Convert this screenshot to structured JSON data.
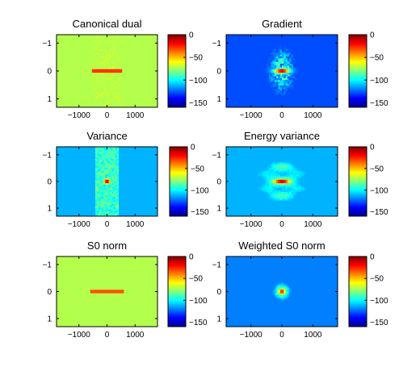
{
  "chart_data": [
    {
      "type": "heatmap",
      "title": "Canonical dual",
      "pattern": "band",
      "x_ticks": [
        "−1000",
        "0",
        "1000"
      ],
      "y_ticks": [
        "−1",
        "0",
        "1"
      ],
      "xlim": [
        -1800,
        1800
      ],
      "ylim": [
        1.3,
        -1.3
      ],
      "colorbar": {
        "ticks": [
          "0",
          "−50",
          "−100",
          "−150"
        ],
        "range": [
          -160,
          0
        ]
      }
    },
    {
      "type": "heatmap",
      "title": "Gradient",
      "pattern": "gradient",
      "x_ticks": [
        "−1000",
        "0",
        "1000"
      ],
      "y_ticks": [
        "−1",
        "0",
        "1"
      ],
      "xlim": [
        -1800,
        1800
      ],
      "ylim": [
        1.3,
        -1.3
      ],
      "colorbar": {
        "ticks": [
          "0",
          "−50",
          "−100",
          "−150"
        ],
        "range": [
          -160,
          0
        ]
      }
    },
    {
      "type": "heatmap",
      "title": "Variance",
      "pattern": "variance",
      "x_ticks": [
        "−1000",
        "0",
        "1000"
      ],
      "y_ticks": [
        "−1",
        "0",
        "1"
      ],
      "xlim": [
        -1800,
        1800
      ],
      "ylim": [
        1.3,
        -1.3
      ],
      "colorbar": {
        "ticks": [
          "0",
          "−50",
          "−100",
          "−150"
        ],
        "range": [
          -160,
          0
        ]
      }
    },
    {
      "type": "heatmap",
      "title": "Energy variance",
      "pattern": "energy",
      "x_ticks": [
        "−1000",
        "0",
        "1000"
      ],
      "y_ticks": [
        "−1",
        "0",
        "1"
      ],
      "xlim": [
        -1800,
        1800
      ],
      "ylim": [
        1.3,
        -1.3
      ],
      "colorbar": {
        "ticks": [
          "0",
          "−50",
          "−100",
          "−150"
        ],
        "range": [
          -160,
          0
        ]
      }
    },
    {
      "type": "heatmap",
      "title": "S0 norm",
      "pattern": "s0",
      "x_ticks": [
        "−1000",
        "0",
        "1000"
      ],
      "y_ticks": [
        "−1",
        "0",
        "1"
      ],
      "xlim": [
        -1800,
        1800
      ],
      "ylim": [
        1.3,
        -1.3
      ],
      "colorbar": {
        "ticks": [
          "0",
          "−50",
          "−100",
          "−150"
        ],
        "range": [
          -160,
          0
        ]
      }
    },
    {
      "type": "heatmap",
      "title": "Weighted S0 norm",
      "pattern": "ws0",
      "x_ticks": [
        "−1000",
        "0",
        "1000"
      ],
      "y_ticks": [
        "−1",
        "0",
        "1"
      ],
      "xlim": [
        -1800,
        1800
      ],
      "ylim": [
        1.3,
        -1.3
      ],
      "colorbar": {
        "ticks": [
          "0",
          "−50",
          "−100",
          "−150"
        ],
        "range": [
          -160,
          0
        ]
      }
    }
  ]
}
